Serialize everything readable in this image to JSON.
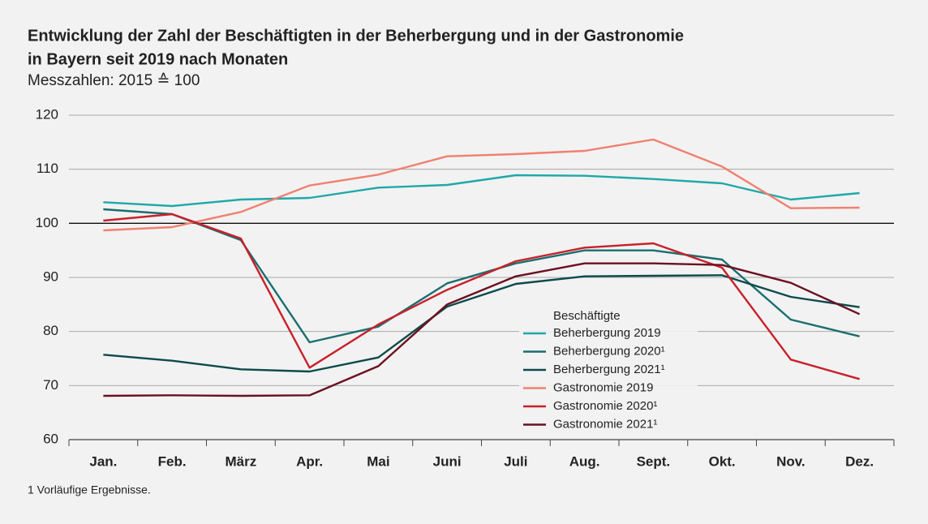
{
  "chart_data": {
    "type": "line",
    "title": "Entwicklung der Zahl der Beschäftigten in der Beherbergung und in der Gastronomie",
    "title_line2": "in Bayern seit 2019 nach Monaten",
    "subtitle": "Messzahlen: 2015 ≙ 100",
    "footnote": "1  Vorläufige Ergebnisse.",
    "legend_title": "Beschäftigte",
    "categories": [
      "Jan.",
      "Feb.",
      "März",
      "Apr.",
      "Mai",
      "Juni",
      "Juli",
      "Aug.",
      "Sept.",
      "Okt.",
      "Nov.",
      "Dez."
    ],
    "series": [
      {
        "name": "Beherbergung 2019",
        "color": "#1fa8a8",
        "values": [
          103.9,
          103.2,
          104.4,
          104.7,
          106.6,
          107.1,
          108.9,
          108.8,
          108.2,
          107.4,
          104.4,
          105.6
        ]
      },
      {
        "name": "Beherbergung 2020¹",
        "color": "#1a6e70",
        "values": [
          102.6,
          101.7,
          96.9,
          78.0,
          80.9,
          88.9,
          92.6,
          95.0,
          95.0,
          93.3,
          82.2,
          79.1
        ]
      },
      {
        "name": "Beherbergung 2021¹",
        "color": "#0d4a4a",
        "values": [
          75.7,
          74.6,
          73.0,
          72.6,
          75.2,
          84.6,
          88.8,
          90.2,
          90.3,
          90.4,
          86.4,
          84.5
        ]
      },
      {
        "name": "Gastronomie 2019",
        "color": "#f08070",
        "values": [
          98.7,
          99.3,
          102.1,
          107.0,
          109.0,
          112.4,
          112.8,
          113.4,
          115.5,
          110.5,
          102.8,
          102.9
        ]
      },
      {
        "name": "Gastronomie 2020¹",
        "color": "#c8202a",
        "values": [
          100.5,
          101.7,
          97.2,
          73.3,
          81.3,
          87.7,
          93.0,
          95.5,
          96.3,
          91.8,
          74.8,
          71.2
        ]
      },
      {
        "name": "Gastronomie 2021¹",
        "color": "#6b1020",
        "values": [
          68.1,
          68.2,
          68.1,
          68.2,
          73.6,
          85.0,
          90.2,
          92.6,
          92.6,
          92.3,
          89.0,
          83.2
        ]
      }
    ],
    "ylim": [
      60,
      120
    ],
    "yticks": [
      60,
      70,
      80,
      90,
      100,
      110,
      120
    ],
    "grid": true,
    "reference_line": 100
  }
}
